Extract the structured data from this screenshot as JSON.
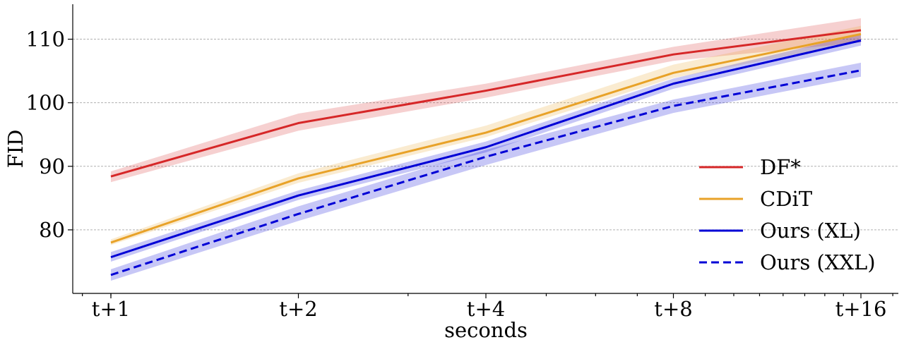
{
  "chart_data": {
    "type": "line",
    "xlabel": "seconds",
    "ylabel": "FID",
    "x_scale": "log2",
    "x": [
      1,
      2,
      4,
      8,
      16
    ],
    "x_tick_labels": [
      "t+1",
      "t+2",
      "t+4",
      "t+8",
      "t+16"
    ],
    "ylim": [
      70,
      115.5
    ],
    "y_ticks": [
      80,
      90,
      100,
      110
    ],
    "y_tick_labels": [
      "80",
      "90",
      "100",
      "110"
    ],
    "grid": "horizontal dashed",
    "legend_position": "lower-right",
    "series": [
      {
        "name": "DF*",
        "color": "#d62728",
        "line_style": "solid",
        "values": [
          88.4,
          96.8,
          101.9,
          107.6,
          111.4
        ],
        "band_lower": [
          87.5,
          95.6,
          100.8,
          106.6,
          109.5
        ],
        "band_upper": [
          89.2,
          98.3,
          103.0,
          108.8,
          113.3
        ]
      },
      {
        "name": "CDiT",
        "color": "#e8a228",
        "line_style": "solid",
        "values": [
          78.0,
          88.1,
          95.3,
          104.7,
          110.8
        ],
        "band_lower": [
          77.6,
          87.4,
          94.6,
          103.9,
          109.6
        ],
        "band_upper": [
          78.5,
          88.9,
          96.4,
          106.0,
          112.1
        ]
      },
      {
        "name": "Ours (XL)",
        "color": "#0000d6",
        "line_style": "solid",
        "values": [
          75.7,
          85.4,
          93.0,
          103.0,
          109.8
        ],
        "band_lower": [
          75.0,
          84.7,
          92.2,
          102.2,
          109.0
        ],
        "band_upper": [
          76.5,
          86.2,
          93.9,
          103.8,
          110.8
        ]
      },
      {
        "name": "Ours (XXL)",
        "color": "#0000d6",
        "line_style": "dashed",
        "values": [
          72.9,
          82.5,
          91.5,
          99.5,
          105.1
        ],
        "band_lower": [
          72.0,
          81.4,
          90.2,
          98.4,
          104.1
        ],
        "band_upper": [
          73.8,
          83.7,
          92.6,
          100.5,
          106.3
        ]
      }
    ]
  }
}
